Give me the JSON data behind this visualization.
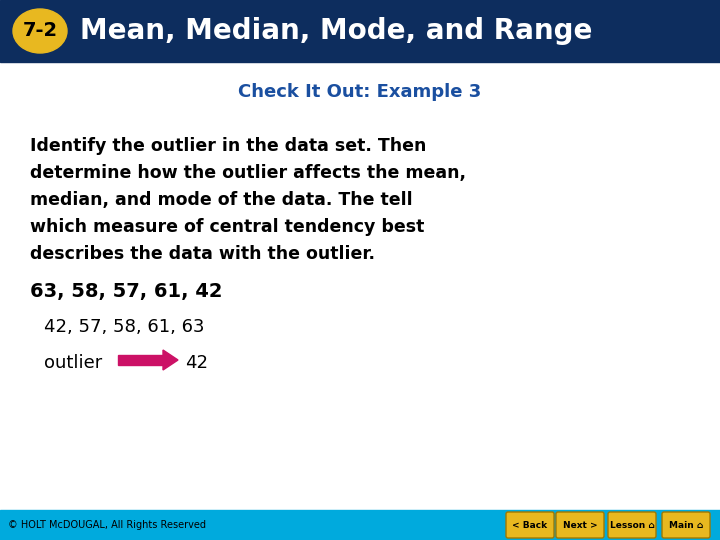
{
  "header_bg": "#0d2d5e",
  "header_text": "Mean, Median, Mode, and Range",
  "header_text_color": "#ffffff",
  "badge_bg": "#e8b820",
  "badge_text": "7-2",
  "badge_text_color": "#000000",
  "subtitle": "Check It Out: Example 3",
  "subtitle_color": "#1a4fa0",
  "body_lines": [
    "Identify the outlier in the data set. Then",
    "determine how the outlier affects the mean,",
    "median, and mode of the data. The tell",
    "which measure of central tendency best",
    "describes the data with the outlier."
  ],
  "body_text_color": "#000000",
  "data_line": "63, 58, 57, 61, 42",
  "data_line_color": "#000000",
  "sorted_line": "42, 57, 58, 61, 63",
  "sorted_line_color": "#000000",
  "outlier_label": "outlier",
  "outlier_value": "42",
  "outlier_label_color": "#000000",
  "arrow_color": "#cc1166",
  "footer_bg": "#00aadd",
  "footer_text": "© HOLT McDOUGAL, All Rights Reserved",
  "footer_text_color": "#000000",
  "bg_color": "#ffffff",
  "btn_labels": [
    "< Back",
    "Next >",
    "Lesson",
    "Main"
  ],
  "btn_bg": "#e8b820",
  "btn_border": "#a07800"
}
